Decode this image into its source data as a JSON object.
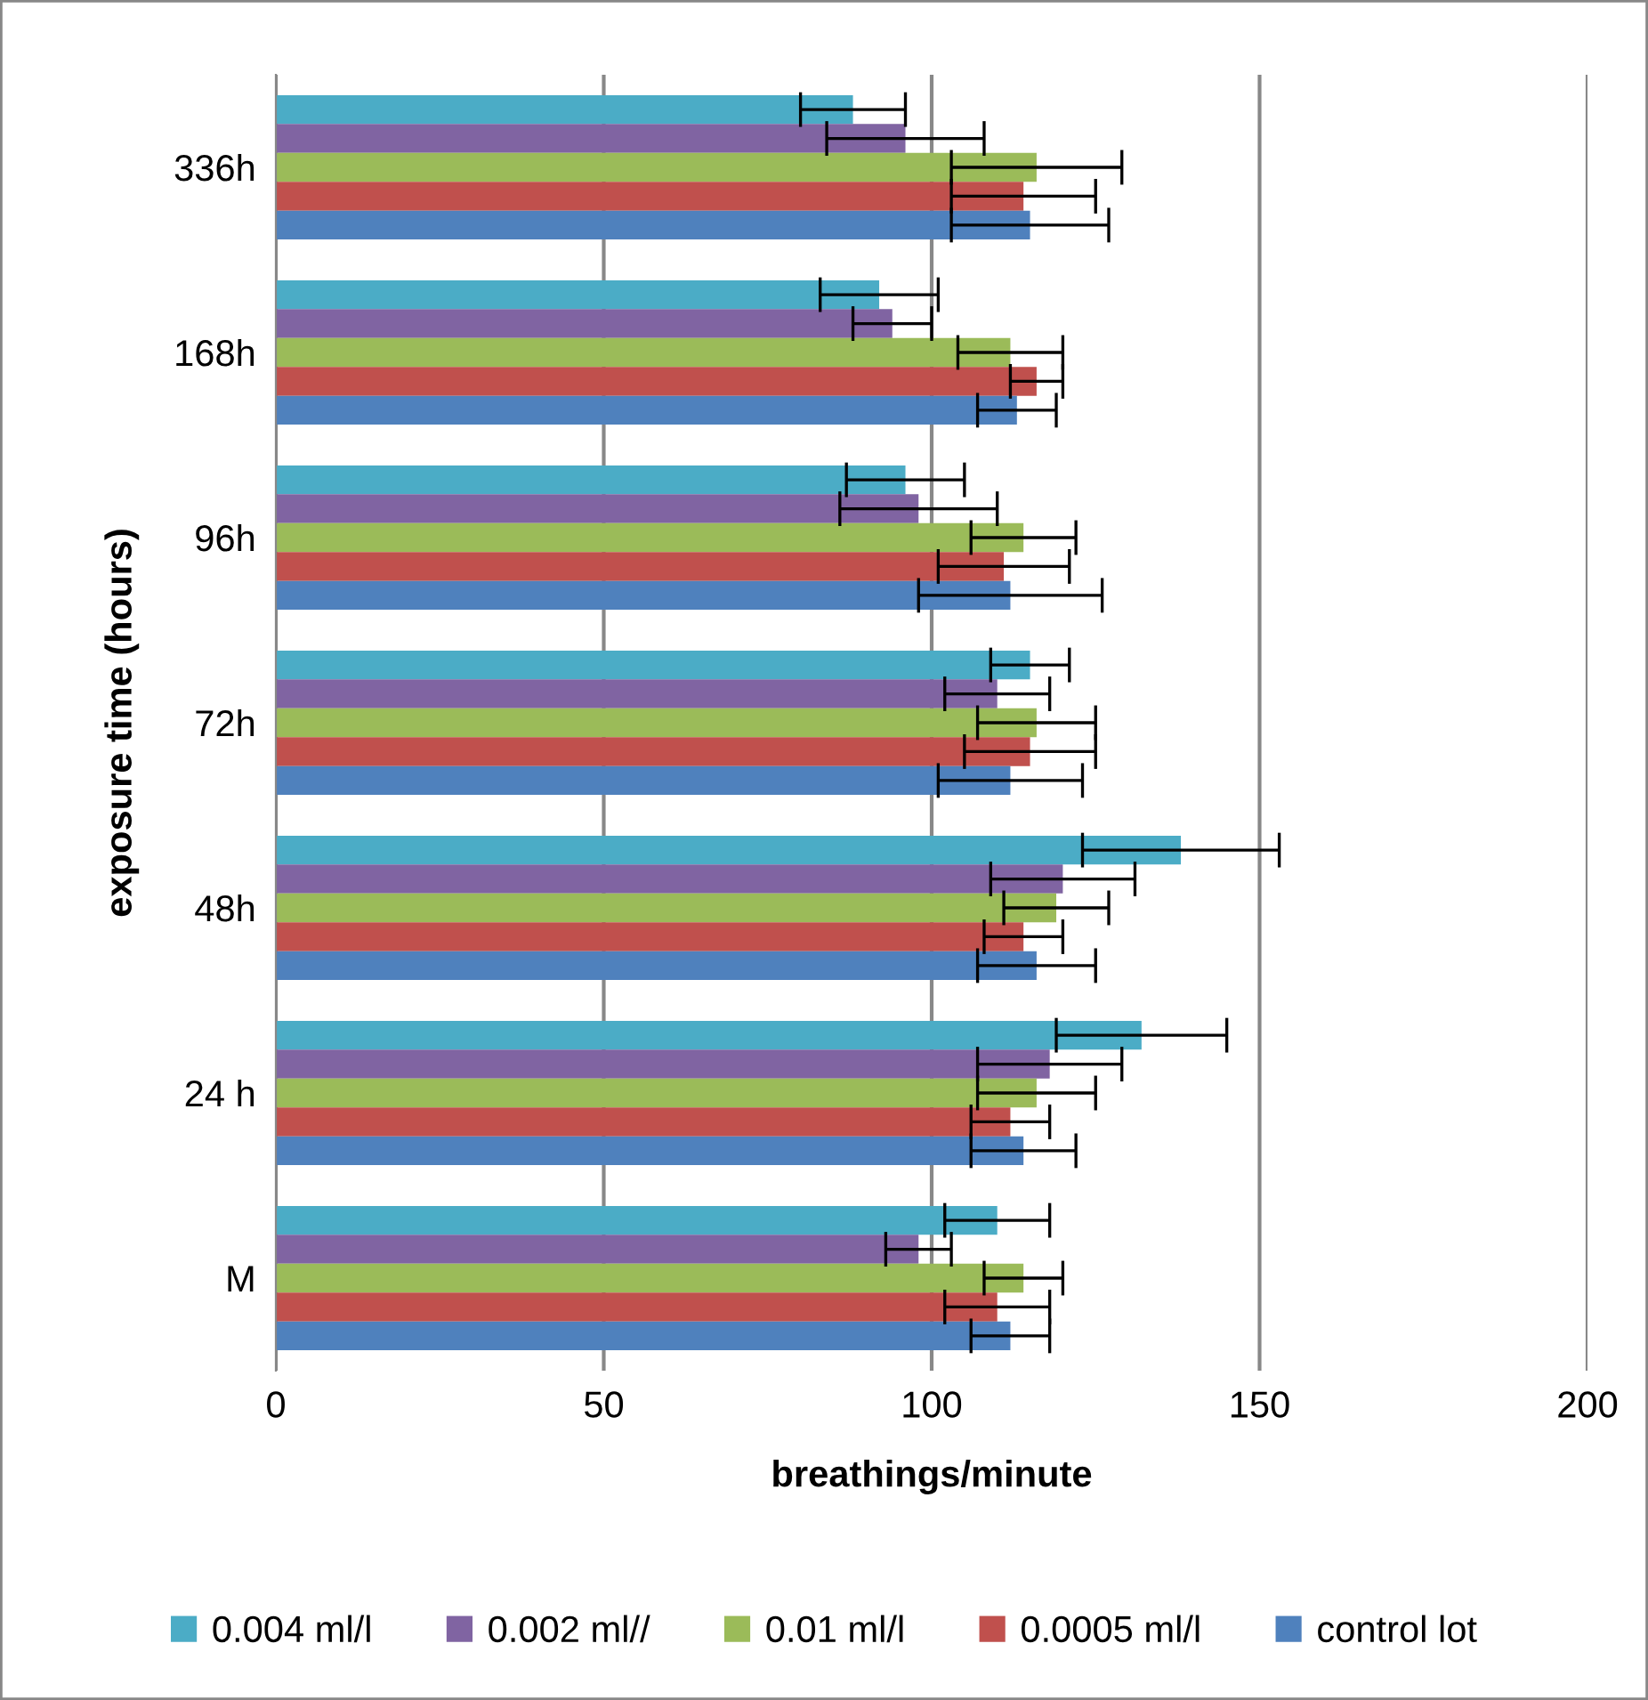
{
  "chart_data": {
    "type": "bar",
    "orientation": "horizontal",
    "xlabel": "breathings/minute",
    "ylabel": "exposure time (hours)",
    "categories": [
      "336h",
      "168h",
      "96h",
      "72h",
      "48h",
      "24 h",
      "M"
    ],
    "series": [
      {
        "name": "0.004 ml/l",
        "color": "#4bacc6",
        "values": [
          88,
          92,
          96,
          115,
          138,
          132,
          110
        ],
        "errors": [
          8,
          9,
          9,
          6,
          15,
          13,
          8
        ]
      },
      {
        "name": "0.002 ml//",
        "color": "#8064a2",
        "values": [
          96,
          94,
          98,
          110,
          120,
          118,
          98
        ],
        "errors": [
          12,
          6,
          12,
          8,
          11,
          11,
          5
        ]
      },
      {
        "name": "0.01 ml/l",
        "color": "#9bbb59",
        "values": [
          116,
          112,
          114,
          116,
          119,
          116,
          114
        ],
        "errors": [
          13,
          8,
          8,
          9,
          8,
          9,
          6
        ]
      },
      {
        "name": "0.0005 ml/l",
        "color": "#c0504d",
        "values": [
          114,
          116,
          111,
          115,
          114,
          112,
          110
        ],
        "errors": [
          11,
          4,
          10,
          10,
          6,
          6,
          8
        ]
      },
      {
        "name": "control lot",
        "color": "#4f81bd",
        "values": [
          115,
          113,
          112,
          112,
          116,
          114,
          112
        ],
        "errors": [
          12,
          6,
          14,
          11,
          9,
          8,
          6
        ]
      }
    ],
    "xlim": [
      0,
      200
    ],
    "xticks": [
      0,
      50,
      100,
      150,
      200
    ],
    "grid": "x",
    "legend": "bottom"
  }
}
